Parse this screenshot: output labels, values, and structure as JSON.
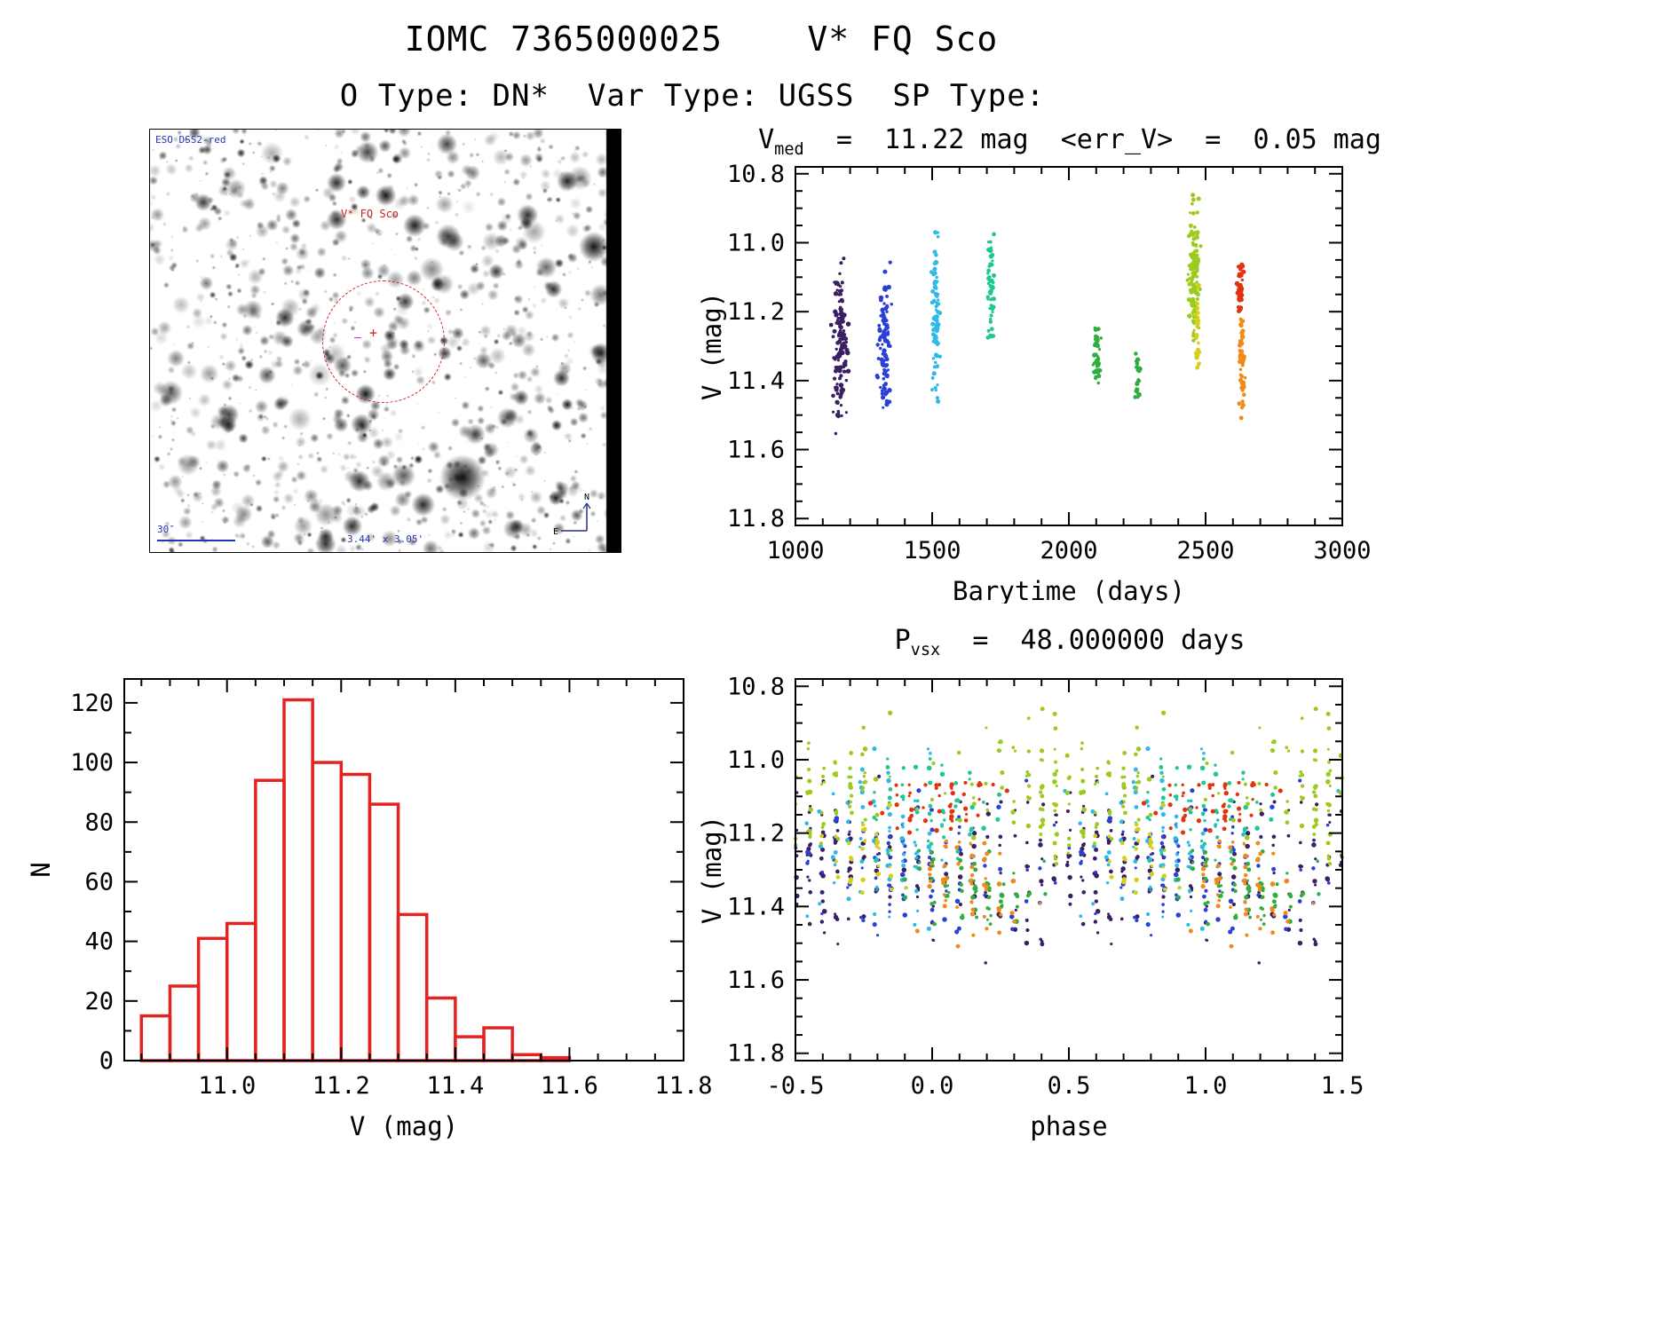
{
  "page": {
    "title": "IOMC 7365000025    V* FQ Sco",
    "subtitle": "O Type: DN*  Var Type: UGSS  SP Type:"
  },
  "finder": {
    "survey_label": "ESO DSS2-red",
    "target_label": "V* FQ Sco",
    "scale_label": "30″",
    "fov_label": "3.44' x 3.05'",
    "compass_n": "N",
    "compass_e": "E",
    "circle_color": "#cc2222",
    "annotation_color": "#2233bb"
  },
  "chart_data": [
    {
      "id": "timeplot",
      "type": "scatter",
      "title": {
        "prefix": "V",
        "sub": "med",
        "rest": "  =  11.22 mag  <err_V>  =  0.05 mag"
      },
      "median_v_mag": 11.22,
      "mean_err_v_mag": 0.05,
      "xlabel": "Barytime (days)",
      "ylabel": "V (mag)",
      "xlim": [
        1000,
        3000
      ],
      "ylim": [
        11.82,
        10.78
      ],
      "xticks": [
        1000,
        1500,
        2000,
        2500,
        3000
      ],
      "xtick_labels": [
        "1000",
        "1500",
        "2000",
        "2500",
        "3000"
      ],
      "xminor": 100,
      "yticks": [
        10.8,
        11.0,
        11.2,
        11.4,
        11.6,
        11.8
      ],
      "ytick_labels": [
        "10.8",
        "11.0",
        "11.2",
        "11.4",
        "11.6",
        "11.8"
      ],
      "yminor": 0.05,
      "clusters": [
        {
          "t": 1162,
          "dt": 14,
          "vc": 11.3,
          "dv": 0.11,
          "vmin": 11.04,
          "vmax": 11.7,
          "color": "#3a1f63",
          "n": 140
        },
        {
          "t": 1325,
          "dt": 11,
          "vc": 11.28,
          "dv": 0.1,
          "vmin": 11.05,
          "vmax": 11.48,
          "color": "#2a3fd4",
          "n": 100
        },
        {
          "t": 1512,
          "dt": 7,
          "vc": 11.22,
          "dv": 0.12,
          "vmin": 10.92,
          "vmax": 11.47,
          "color": "#2fb9e8",
          "n": 80
        },
        {
          "t": 1716,
          "dt": 7,
          "vc": 11.13,
          "dv": 0.08,
          "vmin": 10.94,
          "vmax": 11.28,
          "color": "#1fc98e",
          "n": 55
        },
        {
          "t": 2103,
          "dt": 6,
          "vc": 11.33,
          "dv": 0.05,
          "vmin": 11.24,
          "vmax": 11.42,
          "color": "#2fae3e",
          "n": 40
        },
        {
          "t": 2252,
          "dt": 5,
          "vc": 11.38,
          "dv": 0.035,
          "vmin": 11.32,
          "vmax": 11.45,
          "color": "#2fae3e",
          "n": 28
        },
        {
          "t": 2458,
          "dt": 10,
          "vc": 11.08,
          "dv": 0.1,
          "vmin": 10.86,
          "vmax": 11.35,
          "color": "#9ccb1e",
          "n": 130
        },
        {
          "t": 2470,
          "dt": 4,
          "vc": 11.25,
          "dv": 0.07,
          "vmin": 11.1,
          "vmax": 11.38,
          "color": "#d6cf1a",
          "n": 30
        },
        {
          "t": 2627,
          "dt": 5,
          "vc": 11.13,
          "dv": 0.05,
          "vmin": 11.06,
          "vmax": 11.24,
          "color": "#e2330e",
          "n": 50
        },
        {
          "t": 2633,
          "dt": 5,
          "vc": 11.33,
          "dv": 0.07,
          "vmin": 11.22,
          "vmax": 11.52,
          "color": "#f08a1a",
          "n": 55
        }
      ]
    },
    {
      "id": "histogram",
      "type": "bar",
      "xlabel": "V (mag)",
      "ylabel": "N",
      "xlim": [
        10.82,
        11.8
      ],
      "ylim": [
        0,
        128
      ],
      "xticks": [
        11.0,
        11.2,
        11.4,
        11.6,
        11.8
      ],
      "xtick_labels": [
        "11.0",
        "11.2",
        "11.4",
        "11.6",
        "11.8"
      ],
      "xminor": 0.05,
      "yticks": [
        0,
        20,
        40,
        60,
        80,
        100,
        120
      ],
      "ytick_labels": [
        "0",
        "20",
        "40",
        "60",
        "80",
        "100",
        "120"
      ],
      "yminor": 10,
      "bin_start": 10.85,
      "bin_width": 0.05,
      "counts": [
        15,
        25,
        41,
        46,
        94,
        121,
        100,
        96,
        86,
        49,
        21,
        8,
        11,
        2,
        1
      ],
      "bar_color": "#e32222"
    },
    {
      "id": "phaseplot",
      "type": "scatter",
      "title": {
        "prefix": "P",
        "sub": "vsx",
        "rest": "  =  48.000000 days"
      },
      "period_days": 48.0,
      "xlabel": "phase",
      "ylabel": "V (mag)",
      "xlim": [
        -0.5,
        1.5
      ],
      "ylim": [
        11.82,
        10.78
      ],
      "xticks": [
        -0.5,
        0.0,
        0.5,
        1.0,
        1.5
      ],
      "xtick_labels": [
        "-0.5",
        "0.0",
        "0.5",
        "1.0",
        "1.5"
      ],
      "xminor": 0.1,
      "yticks": [
        10.8,
        11.0,
        11.2,
        11.4,
        11.6,
        11.8
      ],
      "ytick_labels": [
        "10.8",
        "11.0",
        "11.2",
        "11.4",
        "11.6",
        "11.8"
      ],
      "yminor": 0.05,
      "fold": {
        "period": 48,
        "epoch": 994
      },
      "clusters_ref": "timeplot"
    }
  ]
}
